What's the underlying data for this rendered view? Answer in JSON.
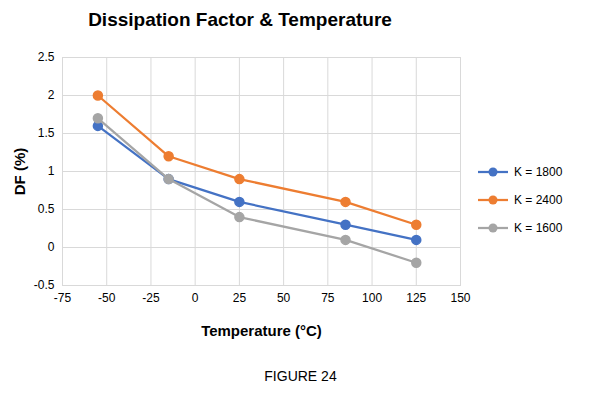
{
  "chart_data": {
    "type": "line",
    "title": "Dissipation Factor & Temperature",
    "caption": "FIGURE 24",
    "xlabel": "Temperature (°C)",
    "ylabel": "DF (%)",
    "x": [
      -55,
      -15,
      25,
      85,
      125
    ],
    "series": [
      {
        "name": "K = 1800",
        "color": "#4472c4",
        "marker": "circle",
        "line_style": "solid",
        "values": [
          1.6,
          0.9,
          0.6,
          0.3,
          0.1
        ]
      },
      {
        "name": "K = 2400",
        "color": "#ed7d31",
        "marker": "circle",
        "line_style": "solid",
        "values": [
          2.0,
          1.2,
          0.9,
          0.6,
          0.3
        ]
      },
      {
        "name": "K = 1600",
        "color": "#a5a5a5",
        "marker": "circle",
        "line_style": "solid",
        "values": [
          1.7,
          0.9,
          0.4,
          0.1,
          -0.2
        ]
      }
    ],
    "xlim": [
      -75,
      150
    ],
    "xticks": [
      -75,
      -50,
      -25,
      0,
      25,
      50,
      75,
      100,
      125,
      150
    ],
    "ylim": [
      -0.5,
      2.5
    ],
    "yticks": [
      -0.5,
      0,
      0.5,
      1,
      1.5,
      2,
      2.5
    ],
    "grid": true,
    "legend": "right"
  }
}
